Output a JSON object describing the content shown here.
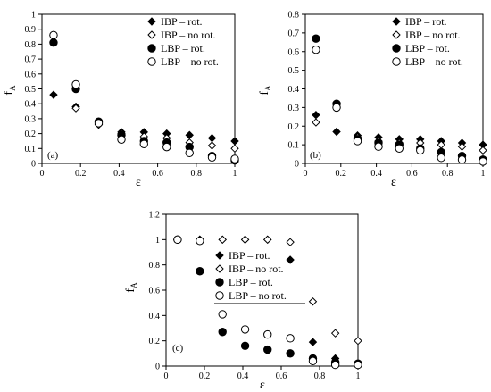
{
  "chart_data": [
    {
      "type": "scatter",
      "panel_label": "(a)",
      "xlabel": "ε",
      "ylabel": "fA",
      "xlim": [
        0,
        1
      ],
      "ylim": [
        0,
        1
      ],
      "x_ticks": [
        "0",
        "0.2",
        "0.4",
        "0.6",
        "0.8",
        "1"
      ],
      "y_ticks": [
        "0",
        "0.1",
        "0.2",
        "0.3",
        "0.4",
        "0.5",
        "0.6",
        "0.7",
        "0.8",
        "0.9",
        "1"
      ],
      "legend": "top-right",
      "series": [
        {
          "name": "IBP – rot.",
          "marker": "diamond-filled",
          "x": [
            0.06,
            0.176,
            0.294,
            0.412,
            0.529,
            0.647,
            0.765,
            0.882,
            1.0
          ],
          "y": [
            0.46,
            0.38,
            0.26,
            0.21,
            0.21,
            0.2,
            0.19,
            0.17,
            0.15
          ]
        },
        {
          "name": "IBP – no rot.",
          "marker": "diamond-open",
          "x": [
            0.06,
            0.176,
            0.294,
            0.412,
            0.529,
            0.647,
            0.765,
            0.882,
            1.0
          ],
          "y": [
            0.86,
            0.37,
            0.26,
            0.2,
            0.18,
            0.17,
            0.14,
            0.12,
            0.1
          ]
        },
        {
          "name": "LBP – rot.",
          "marker": "circle-filled",
          "x": [
            0.06,
            0.176,
            0.294,
            0.412,
            0.529,
            0.647,
            0.765,
            0.882,
            1.0
          ],
          "y": [
            0.81,
            0.5,
            0.28,
            0.19,
            0.15,
            0.14,
            0.11,
            0.05,
            0.02
          ]
        },
        {
          "name": "LBP – no rot.",
          "marker": "circle-open",
          "x": [
            0.06,
            0.176,
            0.294,
            0.412,
            0.529,
            0.647,
            0.765,
            0.882,
            1.0
          ],
          "y": [
            0.86,
            0.53,
            0.27,
            0.16,
            0.13,
            0.11,
            0.07,
            0.04,
            0.03
          ]
        }
      ]
    },
    {
      "type": "scatter",
      "panel_label": "(b)",
      "xlabel": "ε",
      "ylabel": "fA",
      "xlim": [
        0,
        1
      ],
      "ylim": [
        0,
        0.8
      ],
      "x_ticks": [
        "0",
        "0.2",
        "0.4",
        "0.6",
        "0.8",
        "1"
      ],
      "y_ticks": [
        "0",
        "0.1",
        "0.2",
        "0.3",
        "0.4",
        "0.5",
        "0.6",
        "0.7",
        "0.8"
      ],
      "legend": "top-right",
      "series": [
        {
          "name": "IBP – rot.",
          "marker": "diamond-filled",
          "x": [
            0.06,
            0.176,
            0.294,
            0.412,
            0.529,
            0.647,
            0.765,
            0.882,
            1.0
          ],
          "y": [
            0.26,
            0.17,
            0.15,
            0.14,
            0.13,
            0.13,
            0.12,
            0.11,
            0.1
          ]
        },
        {
          "name": "IBP – no rot.",
          "marker": "diamond-open",
          "x": [
            0.06,
            0.176,
            0.294,
            0.412,
            0.529,
            0.647,
            0.765,
            0.882,
            1.0
          ],
          "y": [
            0.22,
            0.32,
            0.14,
            0.12,
            0.11,
            0.11,
            0.1,
            0.09,
            0.07
          ]
        },
        {
          "name": "LBP – rot.",
          "marker": "circle-filled",
          "x": [
            0.06,
            0.176,
            0.294,
            0.412,
            0.529,
            0.647,
            0.765,
            0.882,
            1.0
          ],
          "y": [
            0.67,
            0.32,
            0.13,
            0.11,
            0.1,
            0.08,
            0.06,
            0.04,
            0.02
          ]
        },
        {
          "name": "LBP – no rot.",
          "marker": "circle-open",
          "x": [
            0.06,
            0.176,
            0.294,
            0.412,
            0.529,
            0.647,
            0.765,
            0.882,
            1.0
          ],
          "y": [
            0.61,
            0.3,
            0.12,
            0.09,
            0.08,
            0.07,
            0.03,
            0.02,
            0.01
          ]
        }
      ]
    },
    {
      "type": "scatter",
      "panel_label": "(c)",
      "xlabel": "ε",
      "ylabel": "fA",
      "xlim": [
        0,
        1
      ],
      "ylim": [
        0,
        1.2
      ],
      "x_ticks": [
        "0",
        "0.2",
        "0.4",
        "0.6",
        "0.8",
        "1"
      ],
      "y_ticks": [
        "0",
        "0.2",
        "0.4",
        "0.6",
        "0.8",
        "1",
        "1.2"
      ],
      "legend": "center",
      "series": [
        {
          "name": "IBP – rot.",
          "marker": "diamond-filled",
          "x": [
            0.06,
            0.176,
            0.294,
            0.412,
            0.529,
            0.647,
            0.765,
            0.882,
            1.0
          ],
          "y": [
            1.0,
            1.0,
            1.0,
            1.0,
            1.0,
            0.84,
            0.19,
            0.06,
            0.01
          ]
        },
        {
          "name": "IBP – no rot.",
          "marker": "diamond-open",
          "x": [
            0.06,
            0.176,
            0.294,
            0.412,
            0.529,
            0.647,
            0.765,
            0.882,
            1.0
          ],
          "y": [
            1.0,
            1.0,
            1.0,
            1.0,
            1.0,
            0.98,
            0.51,
            0.26,
            0.2
          ]
        },
        {
          "name": "LBP – rot.",
          "marker": "circle-filled",
          "x": [
            0.06,
            0.176,
            0.294,
            0.412,
            0.529,
            0.647,
            0.765,
            0.882,
            1.0
          ],
          "y": [
            1.0,
            0.75,
            0.27,
            0.16,
            0.13,
            0.1,
            0.06,
            0.03,
            0.02
          ]
        },
        {
          "name": "LBP – no rot.",
          "marker": "circle-open",
          "x": [
            0.06,
            0.176,
            0.294,
            0.412,
            0.529,
            0.647,
            0.765,
            0.882,
            1.0
          ],
          "y": [
            1.0,
            0.99,
            0.41,
            0.29,
            0.25,
            0.22,
            0.04,
            0.01,
            0.01
          ]
        }
      ]
    }
  ]
}
